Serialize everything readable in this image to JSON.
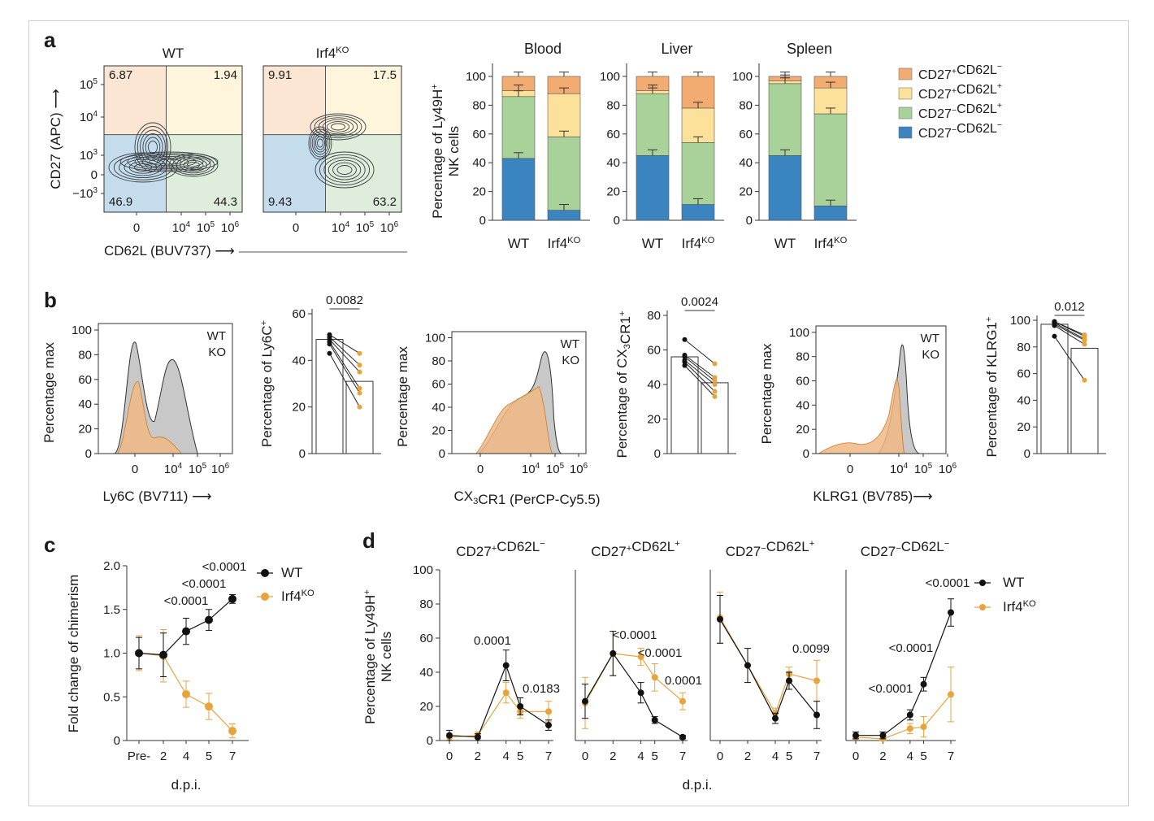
{
  "colors": {
    "wt_black": "#111111",
    "ko_orange": "#e8a33d",
    "q_dneg": "#3a85c0",
    "q_dnegl": "#a8d29a",
    "q_pp": "#fce19a",
    "q_pm": "#f2ac72",
    "quad_tl": "#fbe6d3",
    "quad_tr": "#fef5dc",
    "quad_bl": "#c5dcec",
    "quad_br": "#dfeedc",
    "ko_fill": "#efb985",
    "wt_fill": "#c8c8c8"
  },
  "panel_labels": {
    "a": "a",
    "b": "b",
    "c": "c",
    "d": "d"
  },
  "panel_a": {
    "flow": {
      "ylabel": "CD27 (APC) ⟶",
      "xlabel": "CD62L (BUV737) ⟶",
      "yticks": [
        {
          "label": "10",
          "exp": "5"
        },
        {
          "label": "10",
          "exp": "4"
        },
        {
          "label": "10",
          "exp": "3"
        },
        {
          "label": "0",
          "exp": ""
        },
        {
          "label": "−10",
          "exp": "3"
        }
      ],
      "xticks": [
        {
          "label": "0",
          "exp": ""
        },
        {
          "label": "10",
          "exp": "4"
        },
        {
          "label": "10",
          "exp": "5"
        },
        {
          "label": "10",
          "exp": "6"
        }
      ],
      "plots": [
        {
          "title": "WT",
          "title_sup": "",
          "q_tl": "6.87",
          "q_tr": "1.94",
          "q_bl": "46.9",
          "q_br": "44.3"
        },
        {
          "title": "Irf4",
          "title_sup": "KO",
          "q_tl": "9.91",
          "q_tr": "17.5",
          "q_bl": "9.43",
          "q_br": "63.2"
        }
      ]
    },
    "stack_ylabel": [
      "Percentage of Ly49H",
      "+",
      "NK cells"
    ],
    "legend": [
      {
        "a": "CD27",
        "as": "+",
        "b": "CD62L",
        "bs": "−",
        "color": "#f2ac72"
      },
      {
        "a": "CD27",
        "as": "+",
        "b": "CD62L",
        "bs": "+",
        "color": "#fce19a"
      },
      {
        "a": "CD27",
        "as": "−",
        "b": "CD62L",
        "bs": "+",
        "color": "#a8d29a"
      },
      {
        "a": "CD27",
        "as": "−",
        "b": "CD62L",
        "bs": "−",
        "color": "#3a85c0"
      }
    ]
  },
  "panel_b": {
    "hist_ylabel": "Percentage max",
    "bar_ylabels": [
      {
        "pre": "Percentage of Ly6C",
        "sub": "",
        "post": "",
        "sup": "+"
      },
      {
        "pre": "Percentage of CX",
        "sub": "3",
        "post": "CR1",
        "sup": "+"
      },
      {
        "pre": "Percentage of KLRG1",
        "sub": "",
        "post": "",
        "sup": "+"
      }
    ],
    "hist_xlabels": [
      {
        "pre": "Ly6C (BV711) ⟶",
        "sub": "",
        "post": ""
      },
      {
        "pre": "CX",
        "sub": "3",
        "post": "CR1 (PerCP-Cy5.5)"
      },
      {
        "pre": "KLRG1 (BV785)⟶",
        "sub": "",
        "post": ""
      }
    ],
    "legend_wt": "WT",
    "legend_ko": "KO",
    "pvalues": [
      "0.0082",
      "0.0024",
      "0.012"
    ]
  },
  "panel_c": {
    "ylabel": "Fold change of chimerism",
    "xlabel": "d.p.i.",
    "legend_wt": "WT",
    "legend_ko": "Irf4",
    "legend_ko_sup": "KO"
  },
  "panel_d": {
    "ylabel": [
      "Percentage of Ly49H",
      "+",
      "NK cells"
    ],
    "xlabel": "d.p.i.",
    "legend_wt": "WT",
    "legend_ko": "Irf4",
    "legend_ko_sup": "KO"
  },
  "chart_data": [
    {
      "type": "bar",
      "panel": "a",
      "subtype": "stacked",
      "title": "Blood",
      "categories": [
        "WT",
        "Irf4KO"
      ],
      "ylim": [
        0,
        100
      ],
      "yticks": [
        0,
        20,
        40,
        60,
        80,
        100
      ],
      "series": [
        {
          "name": "CD27−CD62L−",
          "values": [
            43,
            7
          ]
        },
        {
          "name": "CD27−CD62L+",
          "values": [
            43,
            51
          ]
        },
        {
          "name": "CD27+CD62L+",
          "values": [
            4,
            30
          ]
        },
        {
          "name": "CD27+CD62L−",
          "values": [
            10,
            12
          ]
        }
      ]
    },
    {
      "type": "bar",
      "panel": "a",
      "subtype": "stacked",
      "title": "Liver",
      "categories": [
        "WT",
        "Irf4KO"
      ],
      "ylim": [
        0,
        100
      ],
      "yticks": [
        0,
        20,
        40,
        60,
        80,
        100
      ],
      "series": [
        {
          "name": "CD27−CD62L−",
          "values": [
            45,
            11
          ]
        },
        {
          "name": "CD27−CD62L+",
          "values": [
            43,
            43
          ]
        },
        {
          "name": "CD27+CD62L+",
          "values": [
            2,
            24
          ]
        },
        {
          "name": "CD27+CD62L−",
          "values": [
            10,
            22
          ]
        }
      ]
    },
    {
      "type": "bar",
      "panel": "a",
      "subtype": "stacked",
      "title": "Spleen",
      "categories": [
        "WT",
        "Irf4KO"
      ],
      "ylim": [
        0,
        100
      ],
      "yticks": [
        0,
        20,
        40,
        60,
        80,
        100
      ],
      "series": [
        {
          "name": "CD27−CD62L−",
          "values": [
            45,
            10
          ]
        },
        {
          "name": "CD27−CD62L+",
          "values": [
            50,
            64
          ]
        },
        {
          "name": "CD27+CD62L+",
          "values": [
            2,
            18
          ]
        },
        {
          "name": "CD27+CD62L−",
          "values": [
            3,
            8
          ]
        }
      ]
    },
    {
      "type": "bar",
      "panel": "b",
      "subtype": "paired",
      "categories": [
        "WT",
        "KO"
      ],
      "values": [
        49,
        31
      ],
      "ylim": [
        0,
        60
      ],
      "yticks": [
        0,
        20,
        40,
        60
      ],
      "points_wt": [
        51,
        50,
        49,
        48,
        47,
        43
      ],
      "points_ko": [
        43,
        38,
        35,
        28,
        26,
        20
      ]
    },
    {
      "type": "bar",
      "panel": "b",
      "subtype": "paired",
      "categories": [
        "WT",
        "KO"
      ],
      "values": [
        56,
        41
      ],
      "ylim": [
        0,
        80
      ],
      "yticks": [
        0,
        20,
        40,
        60,
        80
      ],
      "points_wt": [
        66,
        57,
        56,
        54,
        53,
        51
      ],
      "points_ko": [
        52,
        44,
        42,
        40,
        36,
        33
      ]
    },
    {
      "type": "bar",
      "panel": "b",
      "subtype": "paired",
      "categories": [
        "WT",
        "KO"
      ],
      "values": [
        97,
        79
      ],
      "ylim": [
        0,
        100
      ],
      "yticks": [
        0,
        20,
        40,
        60,
        80,
        100
      ],
      "points_wt": [
        99,
        99,
        98,
        97,
        96,
        88
      ],
      "points_ko": [
        89,
        88,
        86,
        85,
        82,
        55
      ]
    },
    {
      "type": "line",
      "panel": "c",
      "x": [
        "Pre-",
        "2",
        "4",
        "5",
        "7"
      ],
      "ylim": [
        0,
        2.0
      ],
      "yticks": [
        "0",
        "0.5",
        "1.0",
        "1.5",
        "2.0"
      ],
      "series": [
        {
          "name": "WT",
          "values": [
            1.0,
            0.98,
            1.25,
            1.38,
            1.62
          ],
          "err": [
            0.18,
            0.25,
            0.15,
            0.12,
            0.05
          ]
        },
        {
          "name": "Irf4KO",
          "values": [
            1.0,
            0.97,
            0.53,
            0.39,
            0.11
          ],
          "err": [
            0.2,
            0.3,
            0.15,
            0.15,
            0.08
          ]
        }
      ],
      "annotations": [
        {
          "x": "4",
          "text": "<0.0001"
        },
        {
          "x": "5",
          "text": "<0.0001"
        },
        {
          "x": "7",
          "text": "<0.0001"
        }
      ]
    },
    {
      "type": "line",
      "panel": "d",
      "title": "CD27+CD62L−",
      "x": [
        0,
        2,
        4,
        5,
        7
      ],
      "ylim": [
        0,
        100
      ],
      "yticks": [
        0,
        20,
        40,
        60,
        80,
        100
      ],
      "series": [
        {
          "name": "WT",
          "values": [
            3,
            2,
            44,
            20,
            9
          ],
          "err": [
            3,
            2,
            9,
            5,
            3
          ]
        },
        {
          "name": "Irf4KO",
          "values": [
            2,
            3,
            28,
            17,
            17
          ],
          "err": [
            2,
            2,
            6,
            4,
            6
          ]
        }
      ],
      "annotations": [
        {
          "x": 4,
          "text": "0.0001"
        },
        {
          "x": 7,
          "text": "0.0183"
        }
      ]
    },
    {
      "type": "line",
      "panel": "d",
      "title": "CD27+CD62L+",
      "x": [
        0,
        2,
        4,
        5,
        7
      ],
      "ylim": [
        0,
        100
      ],
      "yticks": [
        0,
        20,
        40,
        60,
        80,
        100
      ],
      "series": [
        {
          "name": "WT",
          "values": [
            23,
            51,
            28,
            12,
            2
          ],
          "err": [
            10,
            13,
            6,
            2,
            1
          ]
        },
        {
          "name": "Irf4KO",
          "values": [
            22,
            51,
            49,
            37,
            23
          ],
          "err": [
            15,
            13,
            5,
            8,
            5
          ]
        }
      ],
      "annotations": [
        {
          "x": 4,
          "text": "<0.0001"
        },
        {
          "x": 5,
          "text": "<0.0001"
        },
        {
          "x": 7,
          "text": "0.0001"
        }
      ]
    },
    {
      "type": "line",
      "panel": "d",
      "title": "CD27−CD62L+",
      "x": [
        0,
        2,
        4,
        5,
        7
      ],
      "ylim": [
        0,
        100
      ],
      "yticks": [
        0,
        20,
        40,
        60,
        80,
        100
      ],
      "series": [
        {
          "name": "WT",
          "values": [
            71,
            44,
            13,
            35,
            15
          ],
          "err": [
            14,
            10,
            3,
            5,
            8
          ]
        },
        {
          "name": "Irf4KO",
          "values": [
            72,
            44,
            16,
            39,
            35
          ],
          "err": [
            15,
            10,
            3,
            4,
            12
          ]
        }
      ],
      "annotations": [
        {
          "x": 7,
          "text": "0.0099"
        }
      ]
    },
    {
      "type": "line",
      "panel": "d",
      "title": "CD27−CD62L−",
      "x": [
        0,
        2,
        4,
        5,
        7
      ],
      "ylim": [
        0,
        100
      ],
      "yticks": [
        0,
        20,
        40,
        60,
        80,
        100
      ],
      "series": [
        {
          "name": "WT",
          "values": [
            3,
            3,
            15,
            33,
            75
          ],
          "err": [
            2,
            2,
            3,
            4,
            8
          ]
        },
        {
          "name": "Irf4KO",
          "values": [
            2,
            1,
            7,
            8,
            27
          ],
          "err": [
            1,
            1,
            3,
            6,
            16
          ]
        }
      ],
      "annotations": [
        {
          "x": 4,
          "text": "<0.0001"
        },
        {
          "x": 5,
          "text": "<0.0001"
        },
        {
          "x": 7,
          "text": "<0.0001"
        }
      ]
    }
  ]
}
